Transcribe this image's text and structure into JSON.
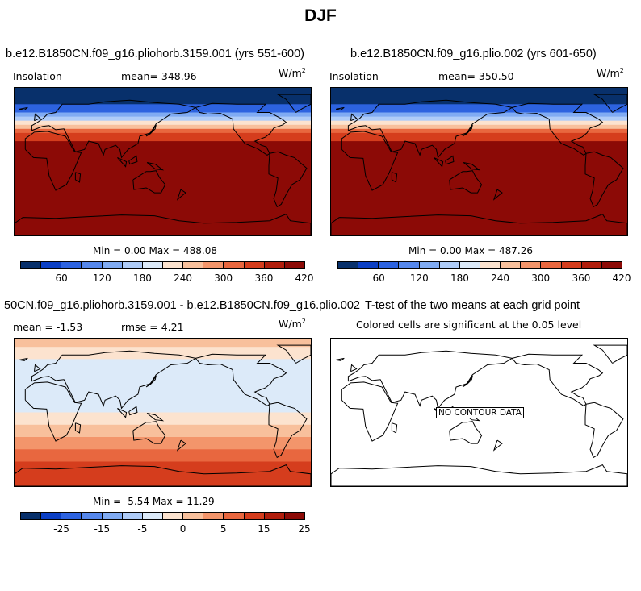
{
  "title": "DJF",
  "colors": {
    "scale": [
      "#08306b",
      "#0b3fc4",
      "#2d63e0",
      "#5587ec",
      "#80abf3",
      "#afccf8",
      "#dceaf9",
      "#fce3cf",
      "#f8c09c",
      "#f3956b",
      "#e8673f",
      "#d53d1d",
      "#b01d0c",
      "#8c0a06"
    ]
  },
  "panels": [
    {
      "title": "b.e12.B1850CN.f09_g16.pliohorb.3159.001 (yrs 551-600)",
      "left_label": "Insolation",
      "mean_label": "mean= 348.96",
      "units": "W/m",
      "units_sup": "2",
      "minmax": "Min =   0.00 Max = 488.08",
      "colorbar_ticks": [
        "60",
        "120",
        "180",
        "240",
        "300",
        "360",
        "420"
      ]
    },
    {
      "title": "b.e12.B1850CN.f09_g16.plio.002 (yrs 601-650)",
      "left_label": "Insolation",
      "mean_label": "mean= 350.50",
      "units": "W/m",
      "units_sup": "2",
      "minmax": "Min =   0.00 Max = 487.26",
      "colorbar_ticks": [
        "60",
        "120",
        "180",
        "240",
        "300",
        "360",
        "420"
      ]
    },
    {
      "title": "50CN.f09_g16.pliohorb.3159.001 - b.e12.B1850CN.f09_g16.plio.002",
      "mean_label": "mean =  -1.53",
      "rmse_label": "rmse =   4.21",
      "units": "W/m",
      "units_sup": "2",
      "minmax": "Min =  -5.54 Max =  11.29",
      "colorbar_ticks": [
        "-25",
        "-15",
        "-5",
        "0",
        "5",
        "15",
        "25"
      ]
    },
    {
      "title": "T-test of the two means at each grid point",
      "subtitle": "Colored cells are significant at the 0.05 level",
      "no_data": "NO CONTOUR DATA"
    }
  ],
  "chart_data": [
    {
      "type": "heatmap",
      "title": "b.e12.B1850CN.f09_g16.pliohorb.3159.001 (yrs 551-600)",
      "variable": "Insolation",
      "units": "W/m^2",
      "mean": 348.96,
      "min": 0.0,
      "max": 488.08,
      "contour_levels": [
        30,
        60,
        90,
        120,
        150,
        180,
        210,
        240,
        270,
        300,
        330,
        360,
        390,
        420,
        450
      ],
      "latitude_bands_north_to_south": [
        {
          "lat_range": [
            90,
            70
          ],
          "value": 0
        },
        {
          "lat_range": [
            70,
            60
          ],
          "value": 60
        },
        {
          "lat_range": [
            60,
            55
          ],
          "value": 120
        },
        {
          "lat_range": [
            55,
            50
          ],
          "value": 170
        },
        {
          "lat_range": [
            50,
            45
          ],
          "value": 220
        },
        {
          "lat_range": [
            45,
            40
          ],
          "value": 260
        },
        {
          "lat_range": [
            40,
            35
          ],
          "value": 300
        },
        {
          "lat_range": [
            35,
            25
          ],
          "value": 350
        },
        {
          "lat_range": [
            25,
            15
          ],
          "value": 395
        },
        {
          "lat_range": [
            15,
            -60
          ],
          "value": 450
        },
        {
          "lat_range": [
            -60,
            -70
          ],
          "value": 440
        },
        {
          "lat_range": [
            -70,
            -90
          ],
          "value": 470
        }
      ]
    },
    {
      "type": "heatmap",
      "title": "b.e12.B1850CN.f09_g16.plio.002 (yrs 601-650)",
      "variable": "Insolation",
      "units": "W/m^2",
      "mean": 350.5,
      "min": 0.0,
      "max": 487.26,
      "contour_levels": [
        30,
        60,
        90,
        120,
        150,
        180,
        210,
        240,
        270,
        300,
        330,
        360,
        390,
        420,
        450
      ],
      "latitude_bands_north_to_south": [
        {
          "lat_range": [
            90,
            70
          ],
          "value": 0
        },
        {
          "lat_range": [
            70,
            60
          ],
          "value": 60
        },
        {
          "lat_range": [
            60,
            55
          ],
          "value": 120
        },
        {
          "lat_range": [
            55,
            50
          ],
          "value": 170
        },
        {
          "lat_range": [
            50,
            45
          ],
          "value": 220
        },
        {
          "lat_range": [
            45,
            40
          ],
          "value": 260
        },
        {
          "lat_range": [
            40,
            35
          ],
          "value": 300
        },
        {
          "lat_range": [
            35,
            25
          ],
          "value": 350
        },
        {
          "lat_range": [
            25,
            15
          ],
          "value": 395
        },
        {
          "lat_range": [
            15,
            -55
          ],
          "value": 450
        },
        {
          "lat_range": [
            -55,
            -65
          ],
          "value": 440
        },
        {
          "lat_range": [
            -65,
            -90
          ],
          "value": 470
        }
      ]
    },
    {
      "type": "heatmap",
      "title": "50CN.f09_g16.pliohorb.3159.001 - b.e12.B1850CN.f09_g16.plio.002",
      "units": "W/m^2",
      "mean": -1.53,
      "rmse": 4.21,
      "min": -5.54,
      "max": 11.29,
      "contour_levels": [
        -30,
        -25,
        -20,
        -15,
        -10,
        -5,
        -1,
        0,
        1,
        5,
        10,
        15,
        20,
        25,
        30
      ],
      "latitude_bands_north_to_south": [
        {
          "lat_range": [
            90,
            80
          ],
          "value": 0.5
        },
        {
          "lat_range": [
            80,
            65
          ],
          "value": -1
        },
        {
          "lat_range": [
            65,
            45
          ],
          "value": -3
        },
        {
          "lat_range": [
            45,
            15
          ],
          "value": -5
        },
        {
          "lat_range": [
            15,
            0
          ],
          "value": -3
        },
        {
          "lat_range": [
            0,
            -15
          ],
          "value": -1
        },
        {
          "lat_range": [
            -15,
            -30
          ],
          "value": 0.5
        },
        {
          "lat_range": [
            -30,
            -45
          ],
          "value": 3
        },
        {
          "lat_range": [
            -45,
            -60
          ],
          "value": 7
        },
        {
          "lat_range": [
            -60,
            -90
          ],
          "value": 10
        }
      ]
    },
    {
      "type": "heatmap",
      "title": "T-test of the two means at each grid point",
      "subtitle": "Colored cells are significant at the 0.05 level",
      "note": "NO CONTOUR DATA"
    }
  ]
}
